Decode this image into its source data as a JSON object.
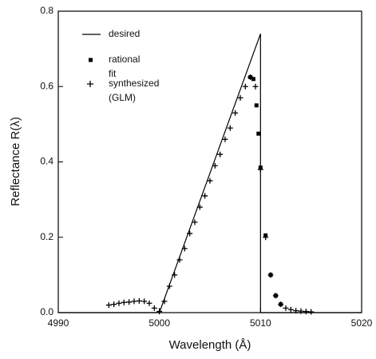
{
  "chart_data": {
    "type": "line-scatter",
    "xlabel": "Wavelength (Å)",
    "ylabel": "Reflectance  R(λ)",
    "xlim": [
      4990,
      5020
    ],
    "xticks": [
      4990,
      5000,
      5010,
      5020
    ],
    "ylim": [
      0,
      0.8
    ],
    "yticks": [
      {
        "value": 0,
        "label": "0.0"
      },
      0.2,
      0.4,
      0.6,
      0.8
    ],
    "series": [
      {
        "name": "desired",
        "kind": "line",
        "color": "#000000",
        "x": [
          4990,
          5000,
          5010,
          5010,
          5020
        ],
        "values": [
          0,
          0,
          0.74,
          0,
          0
        ]
      },
      {
        "name": "rational fit",
        "kind": "square",
        "color": "#000000",
        "x": [
          5009,
          5009.3,
          5009.6,
          5009.8,
          5010,
          5010.5,
          5011,
          5011.5,
          5012
        ],
        "values": [
          0.625,
          0.62,
          0.55,
          0.475,
          0.385,
          0.205,
          0.1,
          0.045,
          0.022
        ]
      },
      {
        "name": "synthesized (GLM)",
        "kind": "plus",
        "color": "#000000",
        "x": [
          4995,
          4995.5,
          4996,
          4996.5,
          4997,
          4997.5,
          4998,
          4998.5,
          4999,
          4999.5,
          5000,
          5000.5,
          5001,
          5001.5,
          5002,
          5002.5,
          5003,
          5003.5,
          5004,
          5004.5,
          5005,
          5005.5,
          5006,
          5006.5,
          5007,
          5007.5,
          5008,
          5008.5,
          5009,
          5009.5,
          5010,
          5010.5,
          5011,
          5011.5,
          5012,
          5012.5,
          5013,
          5013.5,
          5014,
          5014.5,
          5015
        ],
        "values": [
          0.02,
          0.022,
          0.025,
          0.027,
          0.028,
          0.03,
          0.031,
          0.03,
          0.025,
          0.012,
          0.003,
          0.03,
          0.07,
          0.1,
          0.14,
          0.17,
          0.21,
          0.24,
          0.28,
          0.31,
          0.35,
          0.39,
          0.42,
          0.46,
          0.49,
          0.53,
          0.57,
          0.6,
          0.625,
          0.6,
          0.38,
          0.2,
          0.1,
          0.045,
          0.022,
          0.012,
          0.008,
          0.005,
          0.004,
          0.003,
          0.002
        ]
      }
    ]
  }
}
